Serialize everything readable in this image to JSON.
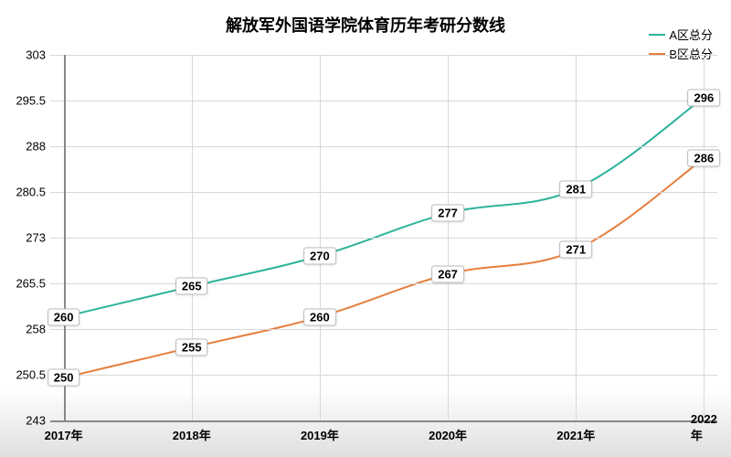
{
  "chart": {
    "type": "line",
    "title": "解放军外国语学院体育历年考研分数线",
    "title_fontsize": 18,
    "background_color": "#ffffff",
    "grid_color": "#d8d8d8",
    "axis_color": "#888888",
    "tick_fontsize": 13,
    "label_fontsize": 13,
    "legend_fontsize": 13,
    "x_categories": [
      "2017年",
      "2018年",
      "2019年",
      "2020年",
      "2021年",
      "2022年"
    ],
    "y_min": 243,
    "y_max": 303,
    "y_tick_step": 7.5,
    "y_ticks": [
      243,
      250.5,
      258,
      265.5,
      273,
      280.5,
      288,
      295.5,
      303
    ],
    "series": [
      {
        "name": "A区总分",
        "color": "#2db39a",
        "line_width": 2,
        "values": [
          260,
          265,
          270,
          277,
          281,
          296
        ]
      },
      {
        "name": "B区总分",
        "color": "#e67e3c",
        "line_width": 2,
        "values": [
          250,
          255,
          260,
          267,
          271,
          286
        ]
      }
    ]
  }
}
